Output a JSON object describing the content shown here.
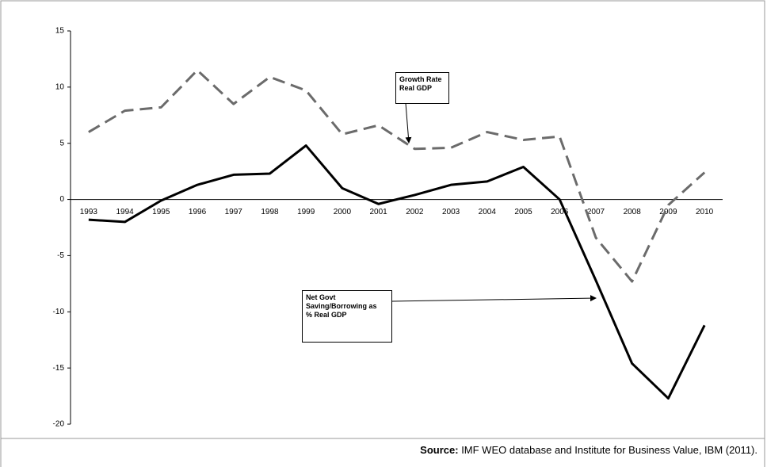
{
  "chart_data": {
    "type": "line",
    "categories": [
      "1993",
      "1994",
      "1995",
      "1996",
      "1997",
      "1998",
      "1999",
      "2000",
      "2001",
      "2002",
      "2003",
      "2004",
      "2005",
      "2006",
      "2007",
      "2008",
      "2009",
      "2010"
    ],
    "series": [
      {
        "name": "Growth Rate Real GDP",
        "color": "#6b6b6b",
        "style": "dashed",
        "values": [
          6.0,
          7.9,
          8.2,
          11.5,
          8.5,
          10.9,
          9.7,
          5.8,
          6.6,
          4.5,
          4.6,
          6.0,
          5.3,
          5.6,
          -3.4,
          -7.3,
          -0.5,
          2.4
        ]
      },
      {
        "name": "Net Govt Saving/Borrowing as % Real GDP",
        "color": "#000000",
        "style": "solid",
        "values": [
          -1.8,
          -2.0,
          -0.1,
          1.3,
          2.2,
          2.3,
          4.8,
          1.0,
          -0.4,
          0.4,
          1.3,
          1.6,
          2.9,
          0.0,
          -7.2,
          -14.6,
          -17.7,
          -11.2
        ]
      }
    ],
    "ylim": [
      -20,
      15
    ],
    "yticks": [
      15,
      10,
      5,
      0,
      -5,
      -10,
      -15,
      -20
    ],
    "grid": false,
    "source_label": "Source:",
    "source": "IMF WEO database and Institute for Business Value, IBM (2011)."
  }
}
